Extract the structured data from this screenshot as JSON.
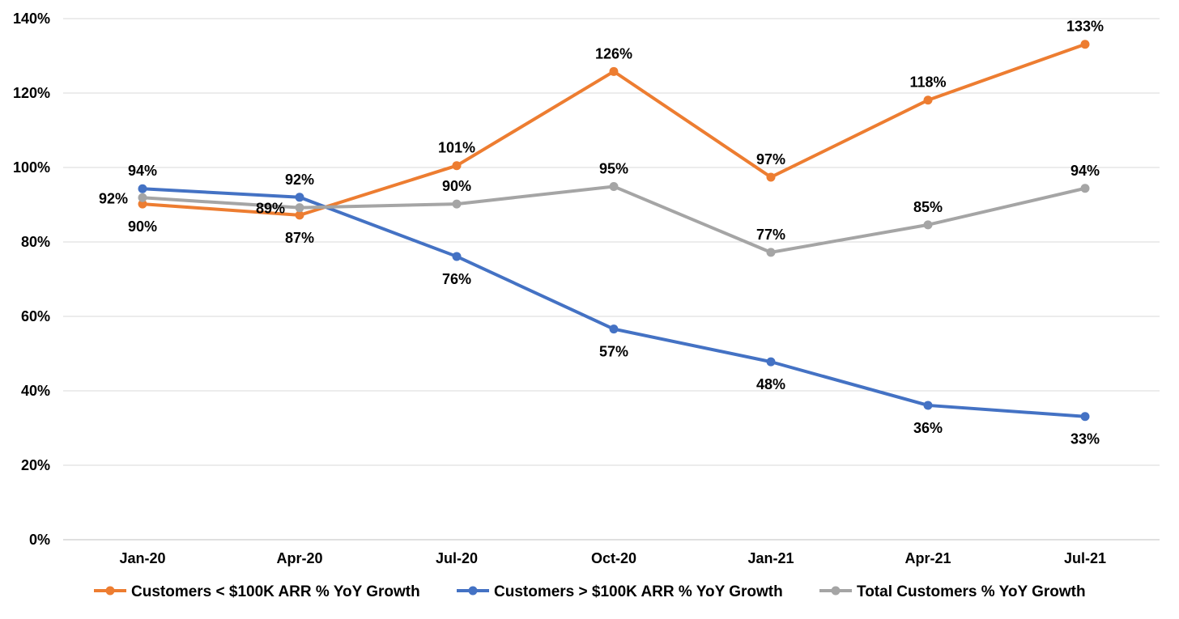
{
  "chart_data": {
    "type": "line",
    "title": "",
    "xlabel": "",
    "ylabel": "",
    "categories": [
      "Jan-20",
      "Apr-20",
      "Jul-20",
      "Oct-20",
      "Jan-21",
      "Apr-21",
      "Jul-21"
    ],
    "ylim": [
      0,
      140
    ],
    "yticks": [
      0,
      20,
      40,
      60,
      80,
      100,
      120,
      140
    ],
    "ytick_labels": [
      "0%",
      "20%",
      "40%",
      "60%",
      "80%",
      "100%",
      "120%",
      "140%"
    ],
    "grid": "horizontal",
    "legend_position": "bottom",
    "series": [
      {
        "name": "Customers < $100K ARR % YoY Growth",
        "color": "#ED7D31",
        "values": [
          90.2,
          87.2,
          100.5,
          125.8,
          97.4,
          118.1,
          133.1
        ],
        "labels": [
          "90%",
          "87%",
          "101%",
          "126%",
          "97%",
          "118%",
          "133%"
        ]
      },
      {
        "name": "Customers > $100K ARR % YoY Growth",
        "color": "#4472C4",
        "values": [
          94.3,
          92.0,
          76.1,
          56.6,
          47.8,
          36.1,
          33.1
        ],
        "labels": [
          "94%",
          "92%",
          "76%",
          "57%",
          "48%",
          "36%",
          "33%"
        ]
      },
      {
        "name": "Total Customers % YoY Growth",
        "color": "#A5A5A5",
        "values": [
          91.9,
          89.2,
          90.2,
          94.9,
          77.2,
          84.6,
          94.4
        ],
        "labels": [
          "92%",
          "89%",
          "90%",
          "95%",
          "77%",
          "85%",
          "94%"
        ]
      }
    ]
  }
}
